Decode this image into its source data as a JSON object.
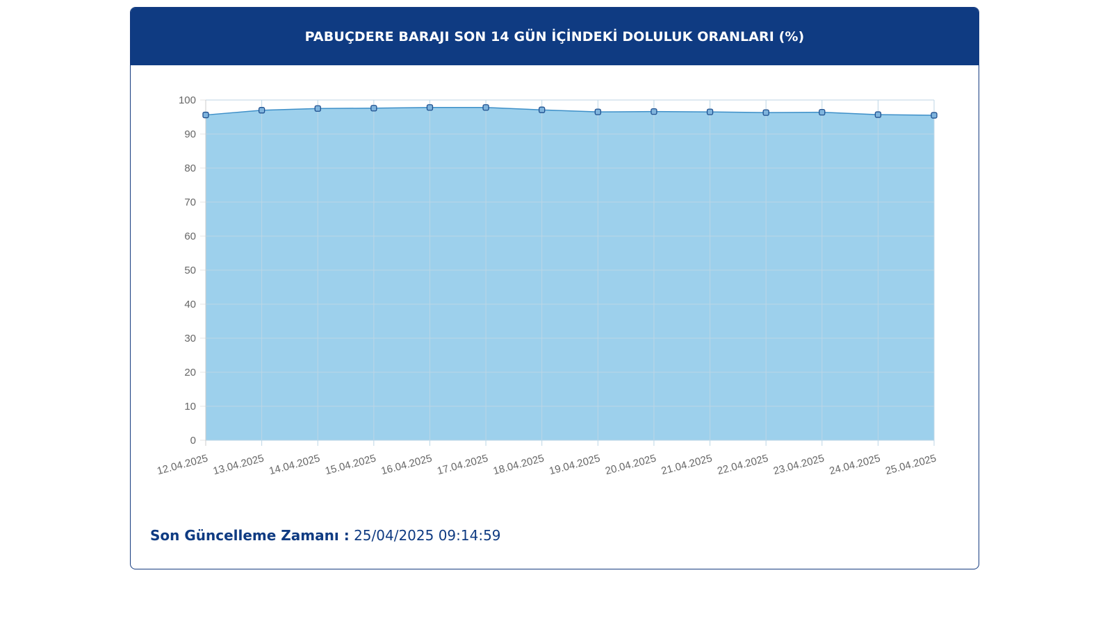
{
  "header": {
    "title": "PABUÇDERE BARAJI SON 14 GÜN İÇİNDEKİ DOLULUK ORANLARI (%)"
  },
  "footer": {
    "label": "Son Güncelleme Zamanı :",
    "value": "25/04/2025 09:14:59"
  },
  "colors": {
    "header_bg": "#0f3b82",
    "area_fill": "#9dd0ec",
    "line": "#3d8fc8",
    "marker_fill": "#7fb4dd",
    "marker_stroke": "#1e4f8e",
    "grid": "#bcd6e6"
  },
  "chart_data": {
    "type": "area",
    "categories": [
      "12.04.2025",
      "13.04.2025",
      "14.04.2025",
      "15.04.2025",
      "16.04.2025",
      "17.04.2025",
      "18.04.2025",
      "19.04.2025",
      "20.04.2025",
      "21.04.2025",
      "22.04.2025",
      "23.04.2025",
      "24.04.2025",
      "25.04.2025"
    ],
    "series": [
      {
        "values": [
          95.6,
          97.0,
          97.5,
          97.6,
          97.8,
          97.8,
          97.1,
          96.5,
          96.6,
          96.5,
          96.3,
          96.4,
          95.7,
          95.5
        ]
      }
    ],
    "ylim": [
      0,
      100
    ],
    "yticks": [
      0,
      10,
      20,
      30,
      40,
      50,
      60,
      70,
      80,
      90,
      100
    ],
    "grid": true,
    "legend": "none",
    "title": "",
    "xlabel": "",
    "ylabel": ""
  }
}
